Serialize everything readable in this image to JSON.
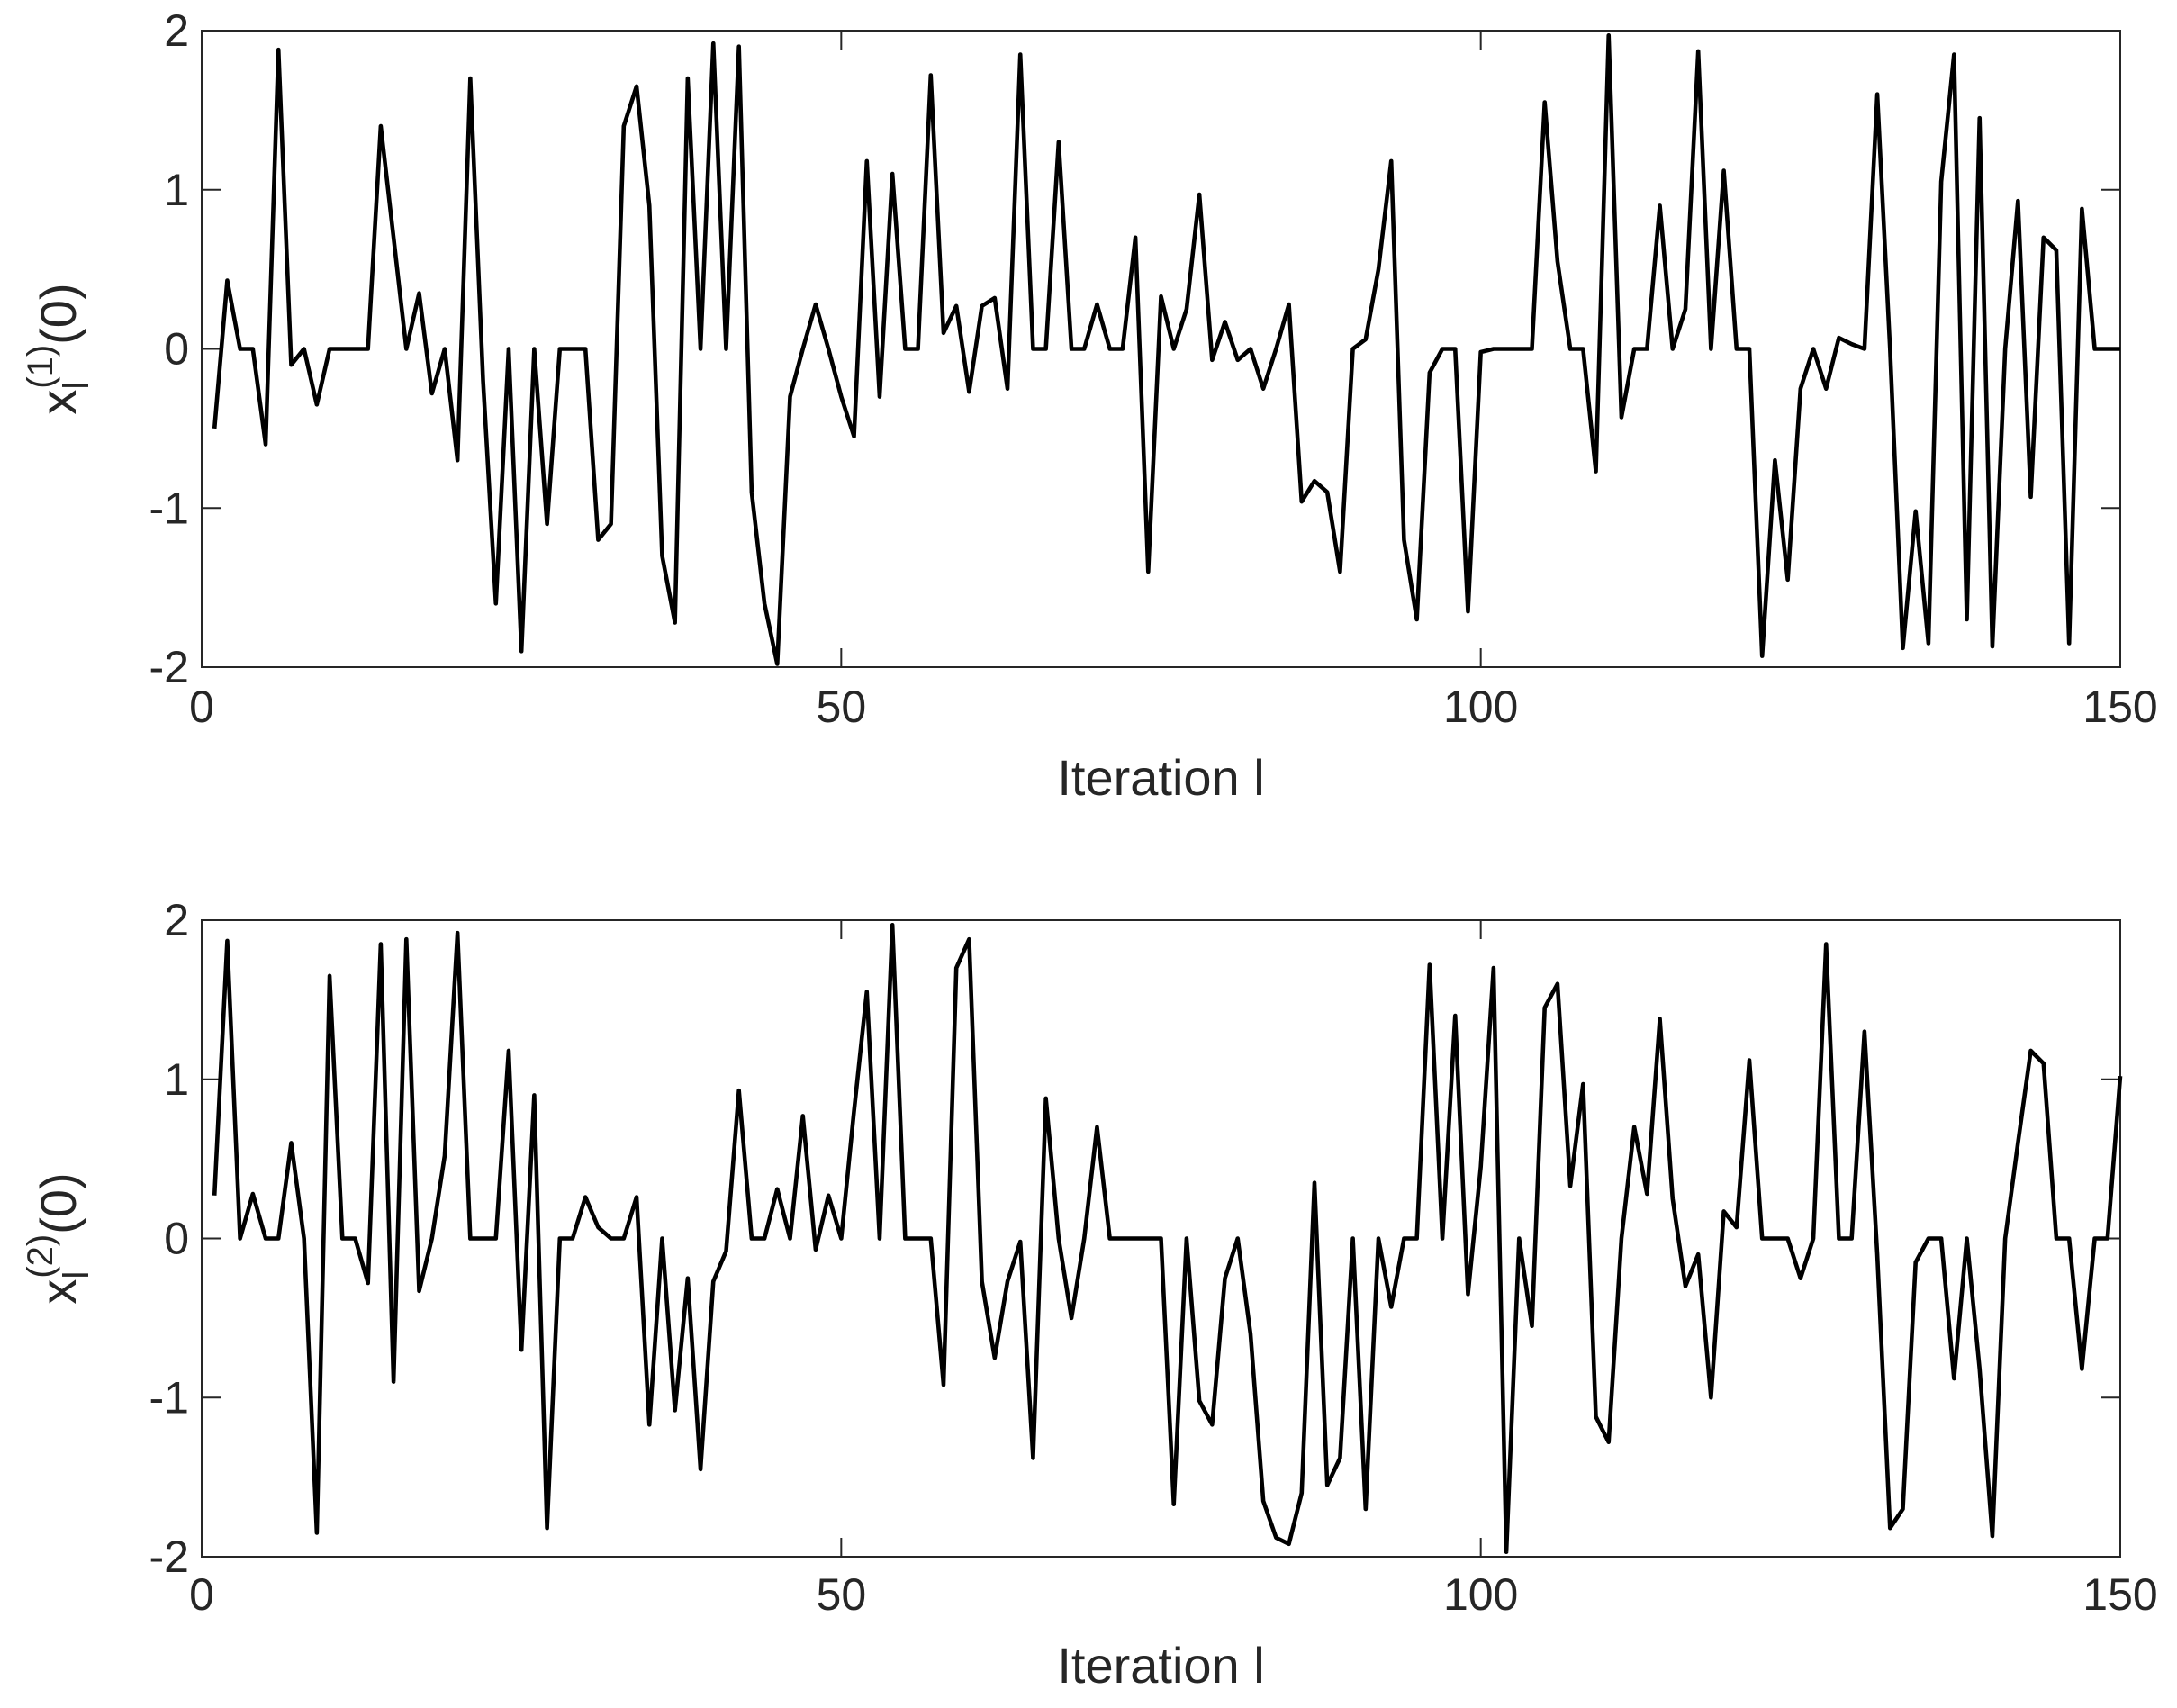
{
  "chart_data": [
    {
      "type": "line",
      "xlabel": "Iteration l",
      "ylabel": {
        "base": "x",
        "sub": "l",
        "sup": "(1)",
        "tail": "(0)"
      },
      "xlim": [
        0,
        150
      ],
      "ylim": [
        -2,
        2
      ],
      "xticks": [
        0,
        50,
        100,
        150
      ],
      "yticks": [
        -2,
        -1,
        0,
        1,
        2
      ],
      "x": [
        1,
        2,
        3,
        4,
        5,
        6,
        7,
        8,
        9,
        10,
        11,
        12,
        13,
        14,
        15,
        16,
        17,
        18,
        19,
        20,
        21,
        22,
        23,
        24,
        25,
        26,
        27,
        28,
        29,
        30,
        31,
        32,
        33,
        34,
        35,
        36,
        37,
        38,
        39,
        40,
        41,
        42,
        43,
        44,
        45,
        46,
        47,
        48,
        49,
        50,
        51,
        52,
        53,
        54,
        55,
        56,
        57,
        58,
        59,
        60,
        61,
        62,
        63,
        64,
        65,
        66,
        67,
        68,
        69,
        70,
        71,
        72,
        73,
        74,
        75,
        76,
        77,
        78,
        79,
        80,
        81,
        82,
        83,
        84,
        85,
        86,
        87,
        88,
        89,
        90,
        91,
        92,
        93,
        94,
        95,
        96,
        97,
        98,
        99,
        100,
        101,
        102,
        103,
        104,
        105,
        106,
        107,
        108,
        109,
        110,
        111,
        112,
        113,
        114,
        115,
        116,
        117,
        118,
        119,
        120,
        121,
        122,
        123,
        124,
        125,
        126,
        127,
        128,
        129,
        130,
        131,
        132,
        133,
        134,
        135,
        136,
        137,
        138,
        139,
        140,
        141,
        142,
        143,
        144,
        145,
        146,
        147,
        148,
        149,
        150
      ],
      "series": [
        {
          "color": "#000000",
          "values": [
            -0.5,
            0.43,
            0,
            0,
            -0.6,
            1.88,
            -0.1,
            0,
            -0.35,
            0,
            0,
            0,
            0,
            1.4,
            0.7,
            0,
            0.35,
            -0.28,
            0,
            -0.7,
            1.7,
            -0.2,
            -1.6,
            0,
            -1.9,
            0,
            -1.1,
            0,
            0,
            0,
            -1.2,
            -1.1,
            1.4,
            1.65,
            0.9,
            -1.3,
            -1.72,
            1.7,
            0,
            1.92,
            0,
            1.9,
            -0.9,
            -1.6,
            -1.98,
            -0.3,
            0,
            0.28,
            0,
            -0.3,
            -0.55,
            1.18,
            -0.3,
            1.1,
            0,
            0,
            1.72,
            0.1,
            0.27,
            -0.27,
            0.27,
            0.32,
            -0.25,
            1.85,
            0,
            0,
            1.3,
            0,
            0,
            0.28,
            0,
            0,
            0.7,
            -1.4,
            0.33,
            0,
            0.25,
            0.97,
            -0.07,
            0.17,
            -0.07,
            0,
            -0.25,
            0,
            0.28,
            -0.96,
            -0.83,
            -0.9,
            -1.4,
            0,
            0.06,
            0.5,
            1.18,
            -1.2,
            -1.7,
            -0.15,
            0,
            0,
            -1.65,
            -0.02,
            0,
            0,
            0,
            0,
            1.55,
            0.55,
            0,
            0,
            -0.77,
            1.97,
            -0.43,
            0,
            0,
            0.9,
            0,
            0.25,
            1.87,
            0,
            1.12,
            0,
            0,
            -1.93,
            -0.7,
            -1.45,
            -0.25,
            0,
            -0.25,
            0.07,
            0.03,
            0,
            1.6,
            0,
            -1.88,
            -1.02,
            -1.85,
            1.05,
            1.85,
            -1.7,
            1.45,
            -1.87,
            0,
            0.93,
            -0.93,
            0.7,
            0.62,
            -1.85,
            0.88,
            0,
            0,
            0
          ]
        }
      ]
    },
    {
      "type": "line",
      "xlabel": "Iteration l",
      "ylabel": {
        "base": "x",
        "sub": "l",
        "sup": "(2)",
        "tail": "(0)"
      },
      "xlim": [
        0,
        150
      ],
      "ylim": [
        -2,
        2
      ],
      "xticks": [
        0,
        50,
        100,
        150
      ],
      "yticks": [
        -2,
        -1,
        0,
        1,
        2
      ],
      "x": [
        1,
        2,
        3,
        4,
        5,
        6,
        7,
        8,
        9,
        10,
        11,
        12,
        13,
        14,
        15,
        16,
        17,
        18,
        19,
        20,
        21,
        22,
        23,
        24,
        25,
        26,
        27,
        28,
        29,
        30,
        31,
        32,
        33,
        34,
        35,
        36,
        37,
        38,
        39,
        40,
        41,
        42,
        43,
        44,
        45,
        46,
        47,
        48,
        49,
        50,
        51,
        52,
        53,
        54,
        55,
        56,
        57,
        58,
        59,
        60,
        61,
        62,
        63,
        64,
        65,
        66,
        67,
        68,
        69,
        70,
        71,
        72,
        73,
        74,
        75,
        76,
        77,
        78,
        79,
        80,
        81,
        82,
        83,
        84,
        85,
        86,
        87,
        88,
        89,
        90,
        91,
        92,
        93,
        94,
        95,
        96,
        97,
        98,
        99,
        100,
        101,
        102,
        103,
        104,
        105,
        106,
        107,
        108,
        109,
        110,
        111,
        112,
        113,
        114,
        115,
        116,
        117,
        118,
        119,
        120,
        121,
        122,
        123,
        124,
        125,
        126,
        127,
        128,
        129,
        130,
        131,
        132,
        133,
        134,
        135,
        136,
        137,
        138,
        139,
        140,
        141,
        142,
        143,
        144,
        145,
        146,
        147,
        148,
        149,
        150
      ],
      "series": [
        {
          "color": "#000000",
          "values": [
            0.27,
            1.87,
            0,
            0.28,
            0,
            0,
            0.6,
            0,
            -1.85,
            1.65,
            0,
            0,
            -0.28,
            1.85,
            -0.9,
            1.88,
            -0.33,
            0,
            0.52,
            1.92,
            0,
            0,
            0,
            1.18,
            -0.7,
            0.9,
            -1.82,
            0,
            0,
            0.26,
            0.07,
            0,
            0,
            0.26,
            -1.17,
            0,
            -1.08,
            -0.25,
            -1.45,
            -0.27,
            -0.08,
            0.93,
            0,
            0,
            0.31,
            0,
            0.77,
            -0.07,
            0.27,
            0,
            0.8,
            1.55,
            0,
            1.97,
            0,
            0,
            0,
            -0.92,
            1.7,
            1.88,
            -0.27,
            -0.75,
            -0.27,
            -0.02,
            -1.38,
            0.88,
            0,
            -0.5,
            0,
            0.7,
            0,
            0,
            0,
            0,
            0,
            -1.67,
            0,
            -1.02,
            -1.17,
            -0.25,
            0,
            -0.6,
            -1.65,
            -1.88,
            -1.92,
            -1.6,
            0.35,
            -1.55,
            -1.38,
            0,
            -1.7,
            0,
            -0.43,
            0,
            0,
            1.72,
            0,
            1.4,
            -0.35,
            0.45,
            1.7,
            -1.97,
            0,
            -0.55,
            1.45,
            1.6,
            0.33,
            0.97,
            -1.12,
            -1.28,
            0,
            0.7,
            0.28,
            1.38,
            0.25,
            -0.3,
            -0.1,
            -1.0,
            0.17,
            0.07,
            1.12,
            0,
            0,
            0,
            -0.25,
            0,
            1.85,
            0,
            0,
            1.3,
            -0.1,
            -1.82,
            -1.7,
            -0.15,
            0,
            0,
            -0.88,
            0,
            -0.82,
            -1.87,
            0,
            0.6,
            1.18,
            1.1,
            0,
            0,
            -0.82,
            0,
            0,
            1.02
          ]
        }
      ]
    }
  ]
}
